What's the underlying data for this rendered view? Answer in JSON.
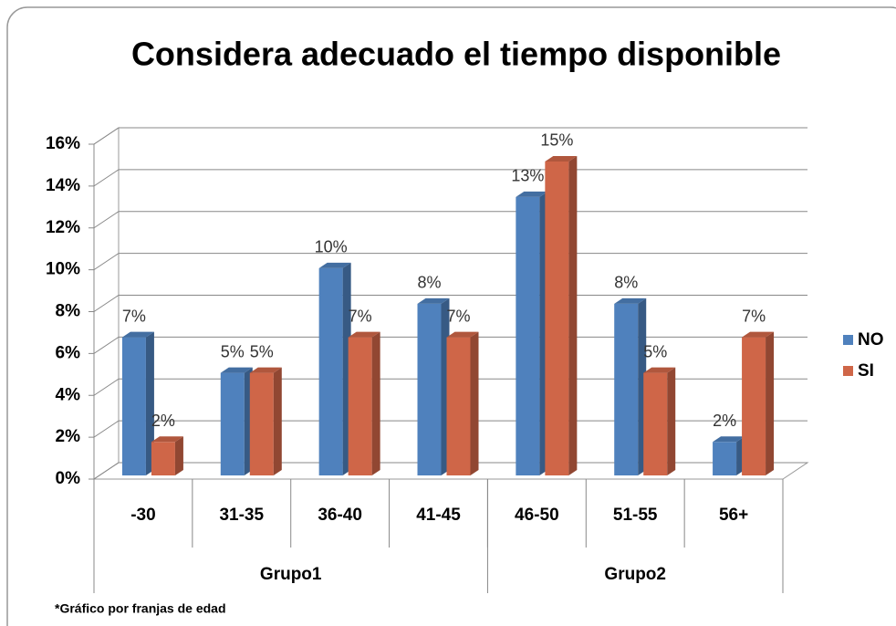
{
  "chart_data": {
    "type": "bar3d",
    "title": "Considera adecuado el tiempo disponible",
    "footnote": "*Gráfico por franjas de edad",
    "groups": [
      {
        "name": "Grupo1",
        "categories": [
          "-30",
          "31-35",
          "36-40",
          "41-45"
        ]
      },
      {
        "name": "Grupo2",
        "categories": [
          "46-50",
          "51-55",
          "56+"
        ]
      }
    ],
    "series": [
      {
        "name": "NO",
        "color": "#4f81bd",
        "values": [
          6.6,
          4.9,
          9.9,
          8.2,
          13.3,
          8.2,
          1.6
        ],
        "value_labels": [
          "7%",
          "5%",
          "10%",
          "8%",
          "13%",
          "8%",
          "2%"
        ]
      },
      {
        "name": "SI",
        "color": "#cf6648",
        "values": [
          1.6,
          4.9,
          6.6,
          6.6,
          15.0,
          4.9,
          6.6
        ],
        "value_labels": [
          "2%",
          "5%",
          "7%",
          "7%",
          "15%",
          "5%",
          "7%"
        ]
      }
    ],
    "ylim": [
      0,
      16
    ],
    "yticks": [
      {
        "value": 0,
        "label": "0%"
      },
      {
        "value": 2,
        "label": "2%"
      },
      {
        "value": 4,
        "label": "4%"
      },
      {
        "value": 6,
        "label": "6%"
      },
      {
        "value": 8,
        "label": "8%"
      },
      {
        "value": 10,
        "label": "10%"
      },
      {
        "value": 12,
        "label": "12%"
      },
      {
        "value": 14,
        "label": "14%"
      },
      {
        "value": 16,
        "label": "16%"
      }
    ],
    "grid": true,
    "legend": "right"
  }
}
